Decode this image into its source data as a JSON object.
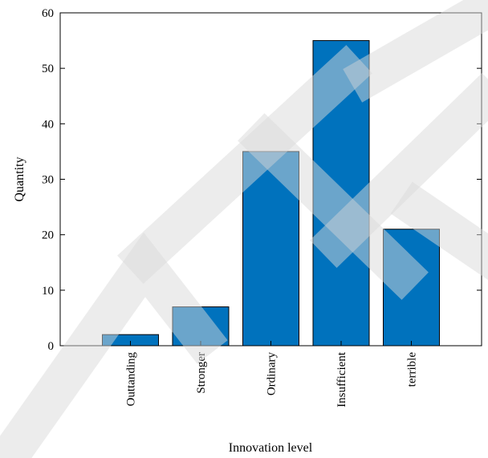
{
  "chart_data": {
    "type": "bar",
    "title": "",
    "xlabel": "Innovation level",
    "ylabel": "Quantity",
    "categories": [
      "Outtanding",
      "Stronger",
      "Ordinary",
      "Insufficient",
      "terrible"
    ],
    "values": [
      2,
      7,
      35,
      55,
      21
    ],
    "ylim": [
      0,
      60
    ],
    "yticks": [
      0,
      10,
      20,
      30,
      40,
      50,
      60
    ],
    "grid": false,
    "legend": "none",
    "bar_color": "#0072BD",
    "bar_edge_color": "#000000"
  },
  "watermark": {
    "text": "RETRACTED",
    "color": "#d9d9d9"
  }
}
